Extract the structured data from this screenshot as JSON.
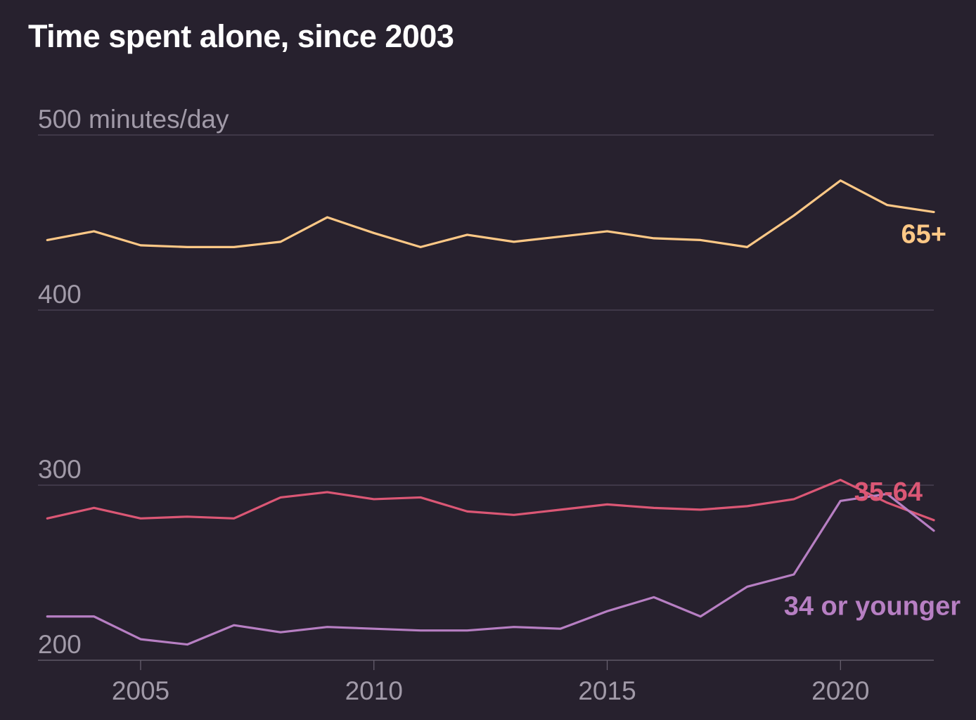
{
  "chart_data": {
    "type": "line",
    "title": "Time spent alone, since 2003",
    "xlabel": "",
    "ylabel": "",
    "y_unit_label": "500 minutes/day",
    "ylim": [
      200,
      500
    ],
    "xlim": [
      2002.8,
      2022
    ],
    "grid": true,
    "y_ticks": [
      200,
      300,
      400,
      500
    ],
    "y_tick_labels": [
      "200",
      "300",
      "400",
      "500 minutes/day"
    ],
    "x_ticks": [
      2005,
      2010,
      2015,
      2020
    ],
    "x_tick_labels": [
      "2005",
      "2010",
      "2015",
      "2020"
    ],
    "x": [
      2003,
      2004,
      2005,
      2006,
      2007,
      2008,
      2009,
      2010,
      2011,
      2012,
      2013,
      2014,
      2015,
      2016,
      2017,
      2018,
      2019,
      2020,
      2021,
      2022
    ],
    "series": [
      {
        "name": "65+",
        "color": "#fdc886",
        "values": [
          440,
          445,
          437,
          436,
          436,
          439,
          453,
          444,
          436,
          443,
          439,
          442,
          445,
          441,
          440,
          436,
          454,
          474,
          460,
          456
        ]
      },
      {
        "name": "35-64",
        "color": "#db5775",
        "values": [
          281,
          287,
          281,
          282,
          281,
          293,
          296,
          292,
          293,
          285,
          283,
          286,
          289,
          287,
          286,
          288,
          292,
          303,
          290,
          280
        ]
      },
      {
        "name": "34 or younger",
        "color": "#b77fc3",
        "values": [
          225,
          225,
          212,
          209,
          220,
          216,
          219,
          218,
          217,
          217,
          219,
          218,
          228,
          236,
          225,
          242,
          249,
          291,
          295,
          274
        ]
      }
    ]
  }
}
